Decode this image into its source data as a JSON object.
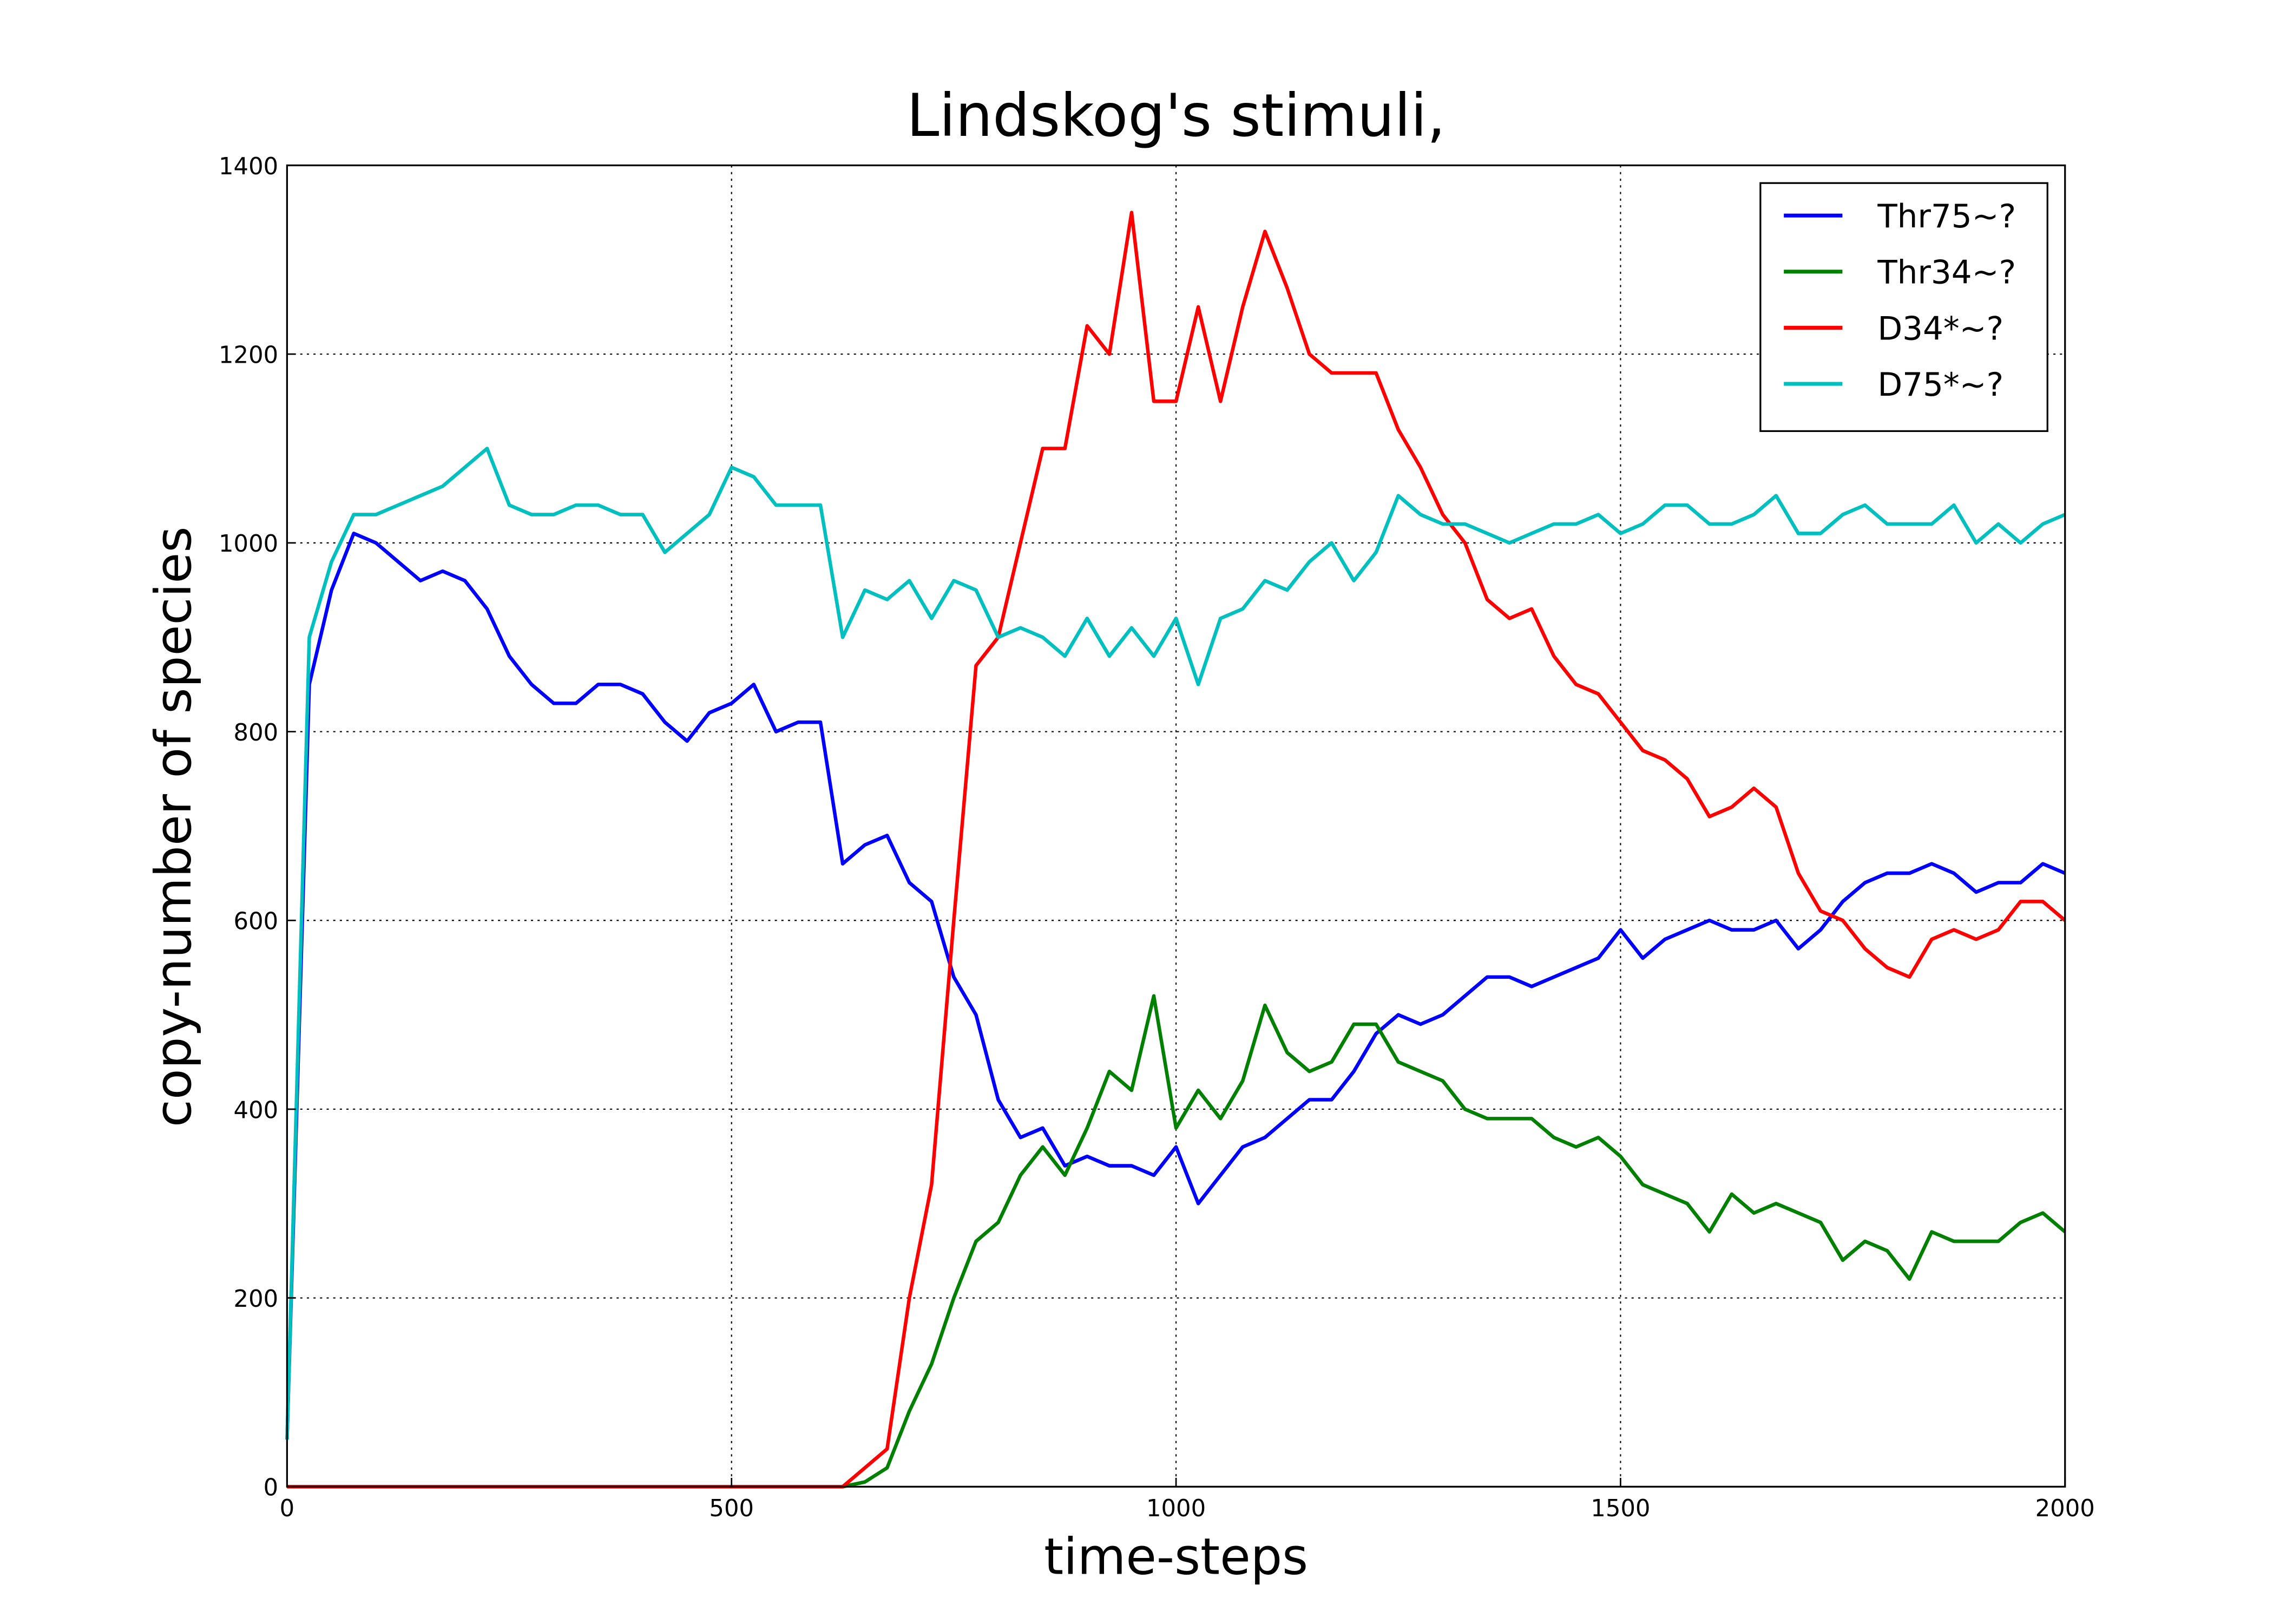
{
  "chart_data": {
    "type": "line",
    "title": "Lindskog's stimuli,",
    "xlabel": "time-steps",
    "ylabel": "copy-number of species",
    "x": [
      0,
      25,
      50,
      75,
      100,
      125,
      150,
      175,
      200,
      225,
      250,
      275,
      300,
      325,
      350,
      375,
      400,
      425,
      450,
      475,
      500,
      525,
      550,
      575,
      600,
      625,
      650,
      675,
      700,
      725,
      750,
      775,
      800,
      825,
      850,
      875,
      900,
      925,
      950,
      975,
      1000,
      1025,
      1050,
      1075,
      1100,
      1125,
      1150,
      1175,
      1200,
      1225,
      1250,
      1275,
      1300,
      1325,
      1350,
      1375,
      1400,
      1425,
      1450,
      1475,
      1500,
      1525,
      1550,
      1575,
      1600,
      1625,
      1650,
      1675,
      1700,
      1725,
      1750,
      1775,
      1800,
      1825,
      1850,
      1875,
      1900,
      1925,
      1950,
      1975,
      2000
    ],
    "series": [
      {
        "name": "Thr75~?",
        "color": "#0000ff",
        "values": [
          50,
          850,
          950,
          1010,
          1000,
          980,
          960,
          970,
          960,
          930,
          880,
          850,
          830,
          830,
          850,
          850,
          840,
          810,
          790,
          820,
          830,
          850,
          800,
          810,
          810,
          660,
          680,
          690,
          640,
          620,
          540,
          500,
          410,
          370,
          380,
          340,
          350,
          340,
          340,
          330,
          360,
          300,
          330,
          360,
          370,
          390,
          410,
          410,
          440,
          480,
          500,
          490,
          500,
          520,
          540,
          540,
          530,
          540,
          550,
          560,
          590,
          560,
          580,
          590,
          600,
          590,
          590,
          600,
          570,
          590,
          620,
          640,
          650,
          650,
          660,
          650,
          630,
          640,
          640,
          660,
          650
        ]
      },
      {
        "name": "Thr34~?",
        "color": "#008000",
        "values": [
          0,
          0,
          0,
          0,
          0,
          0,
          0,
          0,
          0,
          0,
          0,
          0,
          0,
          0,
          0,
          0,
          0,
          0,
          0,
          0,
          0,
          0,
          0,
          0,
          0,
          0,
          5,
          20,
          80,
          130,
          200,
          260,
          280,
          330,
          360,
          330,
          380,
          440,
          420,
          520,
          380,
          420,
          390,
          430,
          510,
          460,
          440,
          450,
          490,
          490,
          450,
          440,
          430,
          400,
          390,
          390,
          390,
          370,
          360,
          370,
          350,
          320,
          310,
          300,
          270,
          310,
          290,
          300,
          290,
          280,
          240,
          260,
          250,
          220,
          270,
          260,
          260,
          260,
          280,
          290,
          270
        ]
      },
      {
        "name": "D34*~?",
        "color": "#ff0000",
        "values": [
          0,
          0,
          0,
          0,
          0,
          0,
          0,
          0,
          0,
          0,
          0,
          0,
          0,
          0,
          0,
          0,
          0,
          0,
          0,
          0,
          0,
          0,
          0,
          0,
          0,
          0,
          20,
          40,
          200,
          320,
          600,
          870,
          900,
          1000,
          1100,
          1100,
          1230,
          1200,
          1350,
          1150,
          1150,
          1250,
          1150,
          1250,
          1330,
          1270,
          1200,
          1180,
          1180,
          1180,
          1120,
          1080,
          1030,
          1000,
          940,
          920,
          930,
          880,
          850,
          840,
          810,
          780,
          770,
          750,
          710,
          720,
          740,
          720,
          650,
          610,
          600,
          570,
          550,
          540,
          580,
          590,
          580,
          590,
          620,
          620,
          600
        ]
      },
      {
        "name": "D75*~?",
        "color": "#00bfbf",
        "values": [
          50,
          900,
          980,
          1030,
          1030,
          1040,
          1050,
          1060,
          1080,
          1100,
          1040,
          1030,
          1030,
          1040,
          1040,
          1030,
          1030,
          990,
          1010,
          1030,
          1080,
          1070,
          1040,
          1040,
          1040,
          900,
          950,
          940,
          960,
          920,
          960,
          950,
          900,
          910,
          900,
          880,
          920,
          880,
          910,
          880,
          920,
          850,
          920,
          930,
          960,
          950,
          980,
          1000,
          960,
          990,
          1050,
          1030,
          1020,
          1020,
          1010,
          1000,
          1010,
          1020,
          1020,
          1030,
          1010,
          1020,
          1040,
          1040,
          1020,
          1020,
          1030,
          1050,
          1010,
          1010,
          1030,
          1040,
          1020,
          1020,
          1020,
          1040,
          1000,
          1020,
          1000,
          1020,
          1030
        ]
      }
    ],
    "xlim": [
      0,
      2000
    ],
    "ylim": [
      0,
      1400
    ],
    "xticks": [
      0,
      500,
      1000,
      1500,
      2000
    ],
    "yticks": [
      0,
      200,
      400,
      600,
      800,
      1000,
      1200,
      1400
    ],
    "grid": true,
    "legend": "upper right"
  }
}
